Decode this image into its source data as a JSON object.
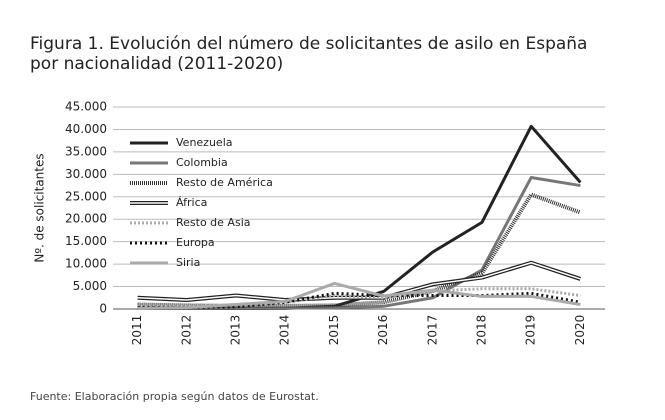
{
  "chart_data": {
    "type": "line",
    "title": "Figura 1. Evolución del número de solicitantes de asilo en España por nacionalidad (2011-2020)",
    "y_label": "Nº. de solicitantes",
    "source": "Fuente: Elaboración propia según datos de Eurostat.",
    "categories": [
      "2011",
      "2012",
      "2013",
      "2014",
      "2015",
      "2016",
      "2017",
      "2018",
      "2019",
      "2020"
    ],
    "series": [
      {
        "name": "Venezuela",
        "color": "#222222",
        "values": [
          100,
          100,
          100,
          150,
          600,
          3900,
          12700,
          19300,
          40700,
          28200
        ]
      },
      {
        "name": "Colombia",
        "color": "#777777",
        "values": [
          200,
          150,
          200,
          200,
          300,
          600,
          2500,
          8700,
          29300,
          27500
        ]
      },
      {
        "name": "Resto de América",
        "color": "#333333",
        "values": [
          1000,
          800,
          700,
          700,
          800,
          1500,
          4000,
          8000,
          25500,
          21500
        ]
      },
      {
        "name": "África",
        "color": "#222222",
        "values": [
          2500,
          2000,
          3000,
          2000,
          2500,
          2500,
          5500,
          7000,
          10300,
          6700
        ]
      },
      {
        "name": "Resto de Asia",
        "color": "#aaaaaa",
        "values": [
          500,
          500,
          1000,
          1500,
          3000,
          2500,
          4000,
          4500,
          4500,
          3000
        ]
      },
      {
        "name": "Europa",
        "color": "#111111",
        "values": [
          300,
          300,
          500,
          1500,
          3500,
          3000,
          3000,
          3000,
          3500,
          1500
        ]
      },
      {
        "name": "Siria",
        "color": "#aaaaaa",
        "values": [
          100,
          300,
          1000,
          1700,
          5700,
          2900,
          4200,
          2800,
          2800,
          1000
        ]
      }
    ],
    "ylim": [
      0,
      45000
    ],
    "yticks": [
      0,
      {
        "value": 5000,
        "label": "5.000"
      },
      {
        "value": 10000,
        "label": "10.000"
      },
      {
        "value": 15000,
        "label": "15.000"
      },
      {
        "value": 20000,
        "label": "20.000"
      },
      {
        "value": 25000,
        "label": "25.000"
      },
      {
        "value": 30000,
        "label": "30.000"
      },
      {
        "value": 35000,
        "label": "35.000"
      },
      {
        "value": 40000,
        "label": "40.000"
      },
      {
        "value": 45000,
        "label": "45.000"
      }
    ],
    "grid": true,
    "legend": "upper left"
  }
}
